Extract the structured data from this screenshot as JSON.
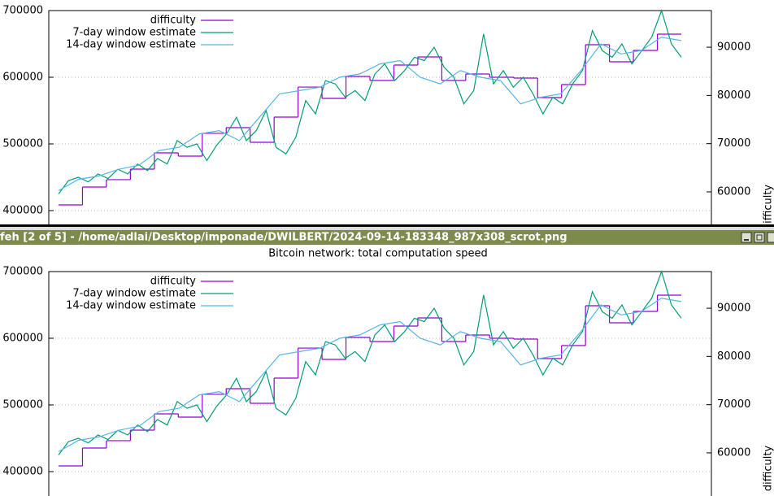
{
  "titlebar": "feh [2 of 5] - /home/adlai/Desktop/imponade/DWILBERT/2024-09-14-183348_987x308_scrot.png",
  "chart_data": [
    {
      "type": "line",
      "ylim": [
        350000,
        700000
      ],
      "yticks": [
        400000,
        500000,
        600000,
        700000
      ],
      "y2lim": [
        49200,
        97600
      ],
      "y2ticks": [
        60000,
        70000,
        80000,
        90000
      ],
      "y2label": "difficulty",
      "grid": true,
      "legend": "upper left",
      "series": [
        {
          "name": "difficulty",
          "color": "#9400d3",
          "step": true,
          "values": [
            408500,
            435400,
            446400,
            462200,
            486600,
            481700,
            515900,
            524400,
            502400,
            540200,
            585300,
            568300,
            601200,
            595100,
            618300,
            630500,
            595100,
            604900,
            600000,
            598800,
            569500,
            589000,
            648800,
            623200,
            640200,
            664600
          ]
        },
        {
          "name": "7-day window estimate",
          "color": "#009e73",
          "values": [
            425000,
            445000,
            450000,
            443000,
            455000,
            448000,
            462000,
            455000,
            470000,
            460000,
            478000,
            470000,
            505000,
            495000,
            500000,
            475000,
            498000,
            515000,
            540000,
            505000,
            520000,
            550000,
            495000,
            485000,
            510000,
            565000,
            545000,
            595000,
            590000,
            570000,
            580000,
            565000,
            605000,
            620000,
            595000,
            610000,
            630000,
            625000,
            645000,
            615000,
            600000,
            560000,
            580000,
            665000,
            590000,
            610000,
            585000,
            600000,
            575000,
            545000,
            570000,
            560000,
            590000,
            610000,
            670000,
            640000,
            630000,
            650000,
            620000,
            640000,
            660000,
            700000,
            650000,
            630000
          ]
        },
        {
          "name": "14-day window estimate",
          "color": "#56b4e9",
          "values": [
            430000,
            447000,
            452000,
            462000,
            468000,
            490000,
            495000,
            515000,
            520000,
            505000,
            540000,
            575000,
            580000,
            585000,
            600000,
            605000,
            620000,
            625000,
            600000,
            590000,
            610000,
            600000,
            595000,
            560000,
            570000,
            575000,
            610000,
            650000,
            635000,
            640000,
            660000,
            655000
          ]
        }
      ]
    },
    {
      "type": "line",
      "title": "Bitcoin network: total computation speed",
      "ylim": [
        350000,
        700000
      ],
      "yticks": [
        400000,
        500000,
        600000,
        700000
      ],
      "y2lim": [
        49200,
        97600
      ],
      "y2ticks": [
        60000,
        70000,
        80000,
        90000
      ],
      "y2label": "difficulty",
      "grid": true,
      "legend": "upper left",
      "series": [
        {
          "name": "difficulty",
          "color": "#9400d3",
          "step": true,
          "values": [
            408500,
            435400,
            446400,
            462200,
            486600,
            481700,
            515900,
            524400,
            502400,
            540200,
            585300,
            568300,
            601200,
            595100,
            618300,
            630500,
            595100,
            604900,
            600000,
            598800,
            569500,
            589000,
            648800,
            623200,
            640200,
            664600
          ]
        },
        {
          "name": "7-day window estimate",
          "color": "#009e73",
          "values": [
            425000,
            445000,
            450000,
            443000,
            455000,
            448000,
            462000,
            455000,
            470000,
            460000,
            478000,
            470000,
            505000,
            495000,
            500000,
            475000,
            498000,
            515000,
            540000,
            505000,
            520000,
            550000,
            495000,
            485000,
            510000,
            565000,
            545000,
            595000,
            590000,
            570000,
            580000,
            565000,
            605000,
            620000,
            595000,
            610000,
            630000,
            625000,
            645000,
            615000,
            600000,
            560000,
            580000,
            665000,
            590000,
            610000,
            585000,
            600000,
            575000,
            545000,
            570000,
            560000,
            590000,
            610000,
            670000,
            640000,
            630000,
            650000,
            620000,
            640000,
            660000,
            700000,
            650000,
            630000
          ]
        },
        {
          "name": "14-day window estimate",
          "color": "#56b4e9",
          "values": [
            430000,
            447000,
            452000,
            462000,
            468000,
            490000,
            495000,
            515000,
            520000,
            505000,
            540000,
            575000,
            580000,
            585000,
            600000,
            605000,
            620000,
            625000,
            600000,
            590000,
            610000,
            600000,
            595000,
            560000,
            570000,
            575000,
            610000,
            650000,
            635000,
            640000,
            660000,
            655000
          ]
        }
      ]
    }
  ]
}
